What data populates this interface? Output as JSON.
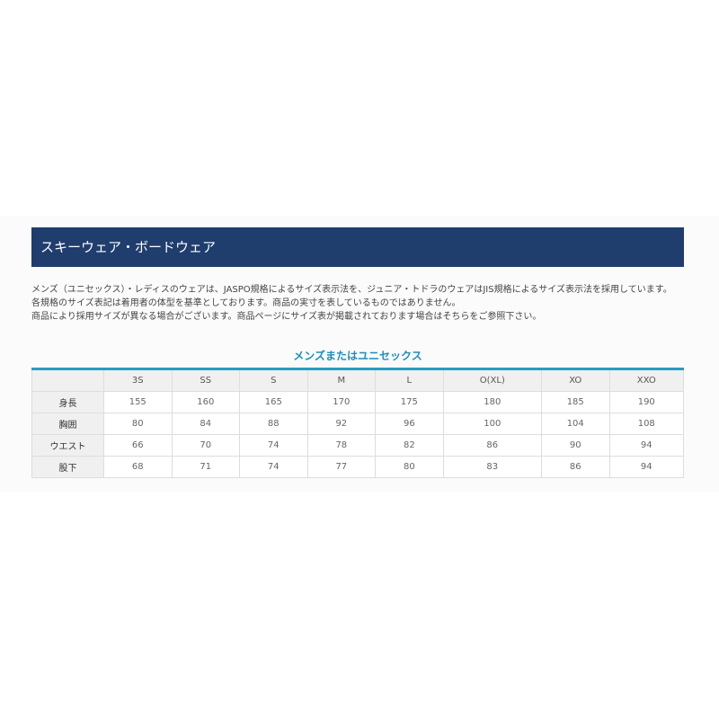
{
  "header": {
    "title": "スキーウェア・ボードウェア"
  },
  "intro": [
    "メンズ（ユニセックス）・レディスのウェアは、JASPO規格によるサイズ表示法を、ジュニア・トドラのウェアはJIS規格によるサイズ表示法を採用しています。",
    "各規格のサイズ表記は着用者の体型を基準としております。商品の実寸を表しているものではありません。",
    "商品により採用サイズが異なる場合がございます。商品ページにサイズ表が掲載されております場合はそちらをご参照下さい。"
  ],
  "table": {
    "title": "メンズまたはユニセックス",
    "columns": [
      "",
      "3S",
      "SS",
      "S",
      "M",
      "L",
      "O(XL)",
      "XO",
      "XXO"
    ],
    "rows": [
      {
        "label": "身長",
        "values": [
          "155",
          "160",
          "165",
          "170",
          "175",
          "180",
          "185",
          "190"
        ]
      },
      {
        "label": "胸囲",
        "values": [
          "80",
          "84",
          "88",
          "92",
          "96",
          "100",
          "104",
          "108"
        ]
      },
      {
        "label": "ウエスト",
        "values": [
          "66",
          "70",
          "74",
          "78",
          "82",
          "86",
          "90",
          "94"
        ]
      },
      {
        "label": "股下",
        "values": [
          "68",
          "71",
          "74",
          "77",
          "80",
          "83",
          "86",
          "94"
        ]
      }
    ]
  },
  "colors": {
    "header_bg": "#1f3d6d",
    "accent": "#2a9bc4"
  }
}
